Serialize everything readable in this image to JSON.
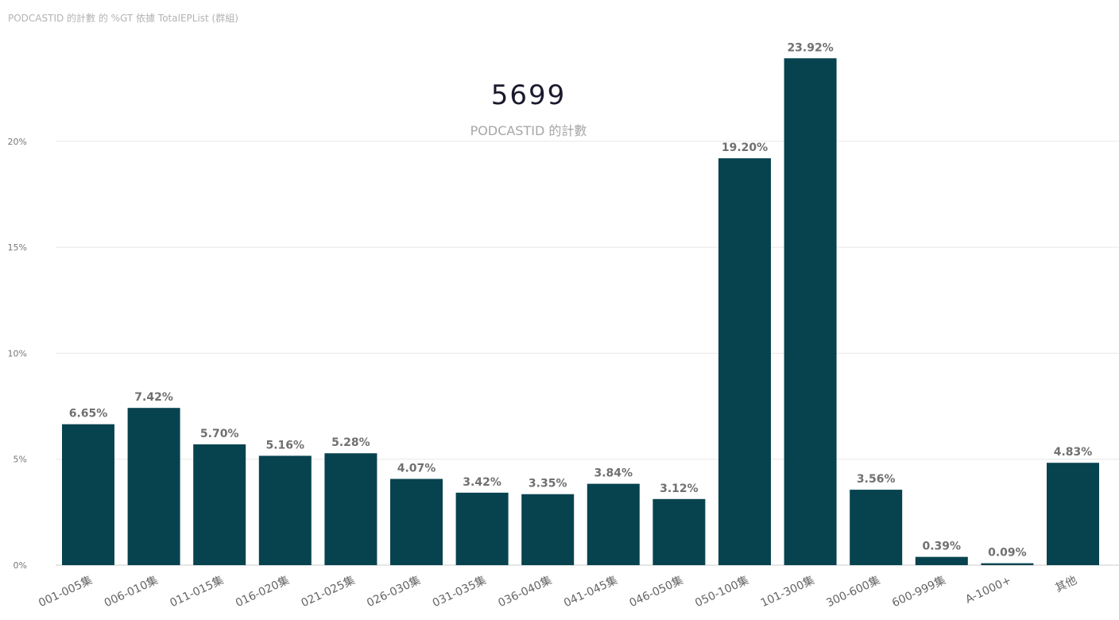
{
  "title": "PODCASTID 的計數 的 %GT 依據 TotalEPList (群組)",
  "kpi": {
    "value": "5699",
    "label": "PODCASTID 的計數"
  },
  "colors": {
    "bar": "#07434f",
    "grid": "#e8e8e8",
    "axis": "#cccccc"
  },
  "chart_data": {
    "type": "bar",
    "title": "PODCASTID 的計數 的 %GT 依據 TotalEPList (群組)",
    "xlabel": "",
    "ylabel": "",
    "ylim": [
      0,
      25
    ],
    "yticks": [
      0,
      5,
      10,
      15,
      20
    ],
    "ytick_labels": [
      "0%",
      "5%",
      "10%",
      "15%",
      "20%"
    ],
    "grid": true,
    "categories": [
      "001-005集",
      "006-010集",
      "011-015集",
      "016-020集",
      "021-025集",
      "026-030集",
      "031-035集",
      "036-040集",
      "041-045集",
      "046-050集",
      "050-100集",
      "101-300集",
      "300-600集",
      "600-999集",
      "A-1000+",
      "其他"
    ],
    "values": [
      6.65,
      7.42,
      5.7,
      5.16,
      5.28,
      4.07,
      3.42,
      3.35,
      3.84,
      3.12,
      19.2,
      23.92,
      3.56,
      0.39,
      0.09,
      4.83
    ],
    "data_labels": [
      "6.65%",
      "7.42%",
      "5.70%",
      "5.16%",
      "5.28%",
      "4.07%",
      "3.42%",
      "3.35%",
      "3.84%",
      "3.12%",
      "19.20%",
      "23.92%",
      "3.56%",
      "0.39%",
      "0.09%",
      "4.83%"
    ]
  }
}
